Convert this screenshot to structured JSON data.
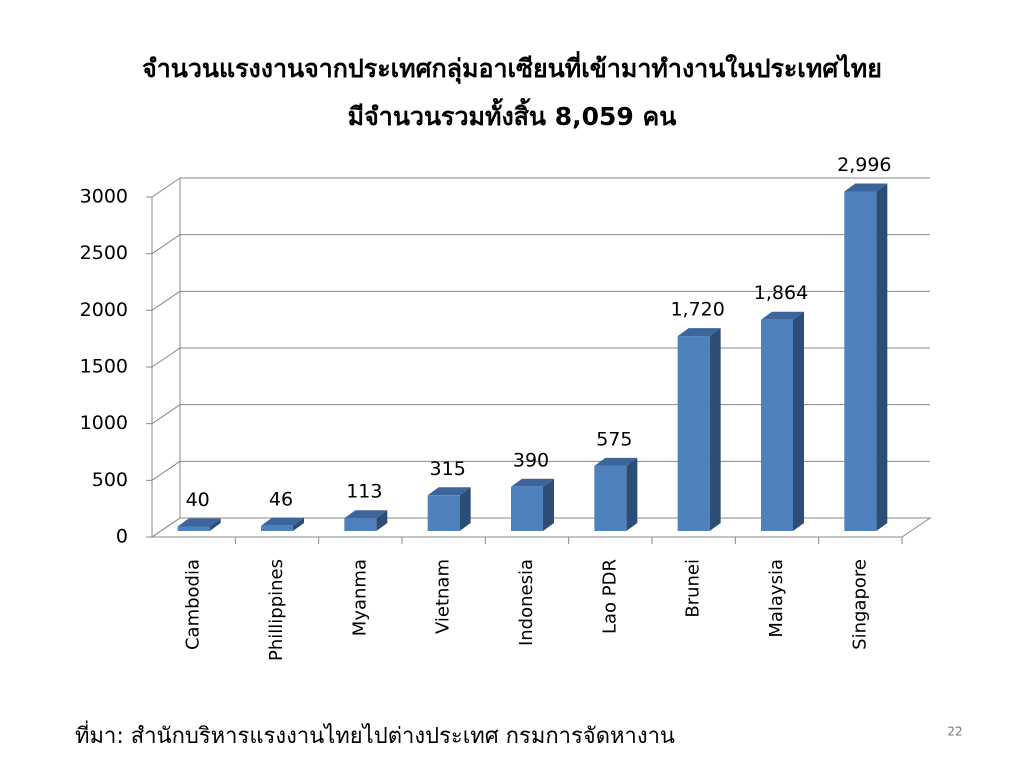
{
  "chart_data": {
    "type": "bar",
    "title": "จำนวนแรงงานจากประเทศกลุ่มอาเซียนที่เข้ามาทำงานในประเทศไทย",
    "subtitle": "มีจำนวนรวมทั้งสิ้น  8,059 คน",
    "categories": [
      "Cambodia",
      "Phillippines",
      "Myanma",
      "Vietnam",
      "Indonesia",
      "Lao PDR",
      "Brunei",
      "Malaysia",
      "Singapore"
    ],
    "values": [
      40,
      46,
      113,
      315,
      390,
      575,
      1720,
      1864,
      2996
    ],
    "value_labels": [
      "40",
      "46",
      "113",
      "315",
      "390",
      "575",
      "1,720",
      "1,864",
      "2,996"
    ],
    "color": "#4f81bd",
    "ylim": [
      0,
      3000
    ],
    "yticks": [
      0,
      500,
      1000,
      1500,
      2000,
      2500,
      3000
    ],
    "grid": true,
    "source": "ที่มา: สำนักบริหารแรงงานไทยไปต่างประเทศ  กรมการจัดหางาน",
    "slide_number": "22"
  }
}
